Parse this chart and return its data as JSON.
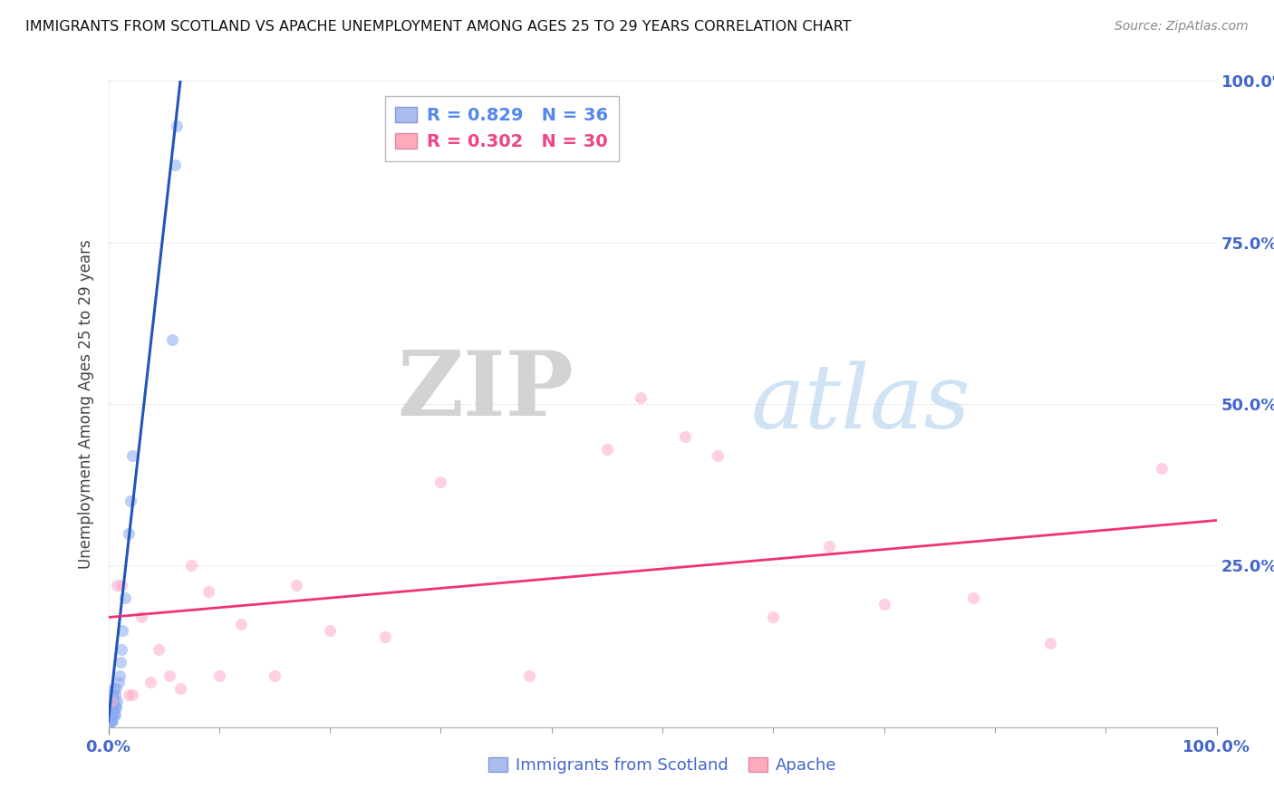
{
  "title": "IMMIGRANTS FROM SCOTLAND VS APACHE UNEMPLOYMENT AMONG AGES 25 TO 29 YEARS CORRELATION CHART",
  "source": "Source: ZipAtlas.com",
  "ylabel": "Unemployment Among Ages 25 to 29 years",
  "legend_bottom": [
    "Immigrants from Scotland",
    "Apache"
  ],
  "legend_top": [
    {
      "label": "R = 0.829   N = 36",
      "color": "#5588ee"
    },
    {
      "label": "R = 0.302   N = 30",
      "color": "#ee4488"
    }
  ],
  "scatter_scotland": {
    "x": [
      0.001,
      0.001,
      0.002,
      0.002,
      0.002,
      0.003,
      0.003,
      0.003,
      0.003,
      0.004,
      0.004,
      0.004,
      0.004,
      0.004,
      0.005,
      0.005,
      0.005,
      0.005,
      0.006,
      0.006,
      0.006,
      0.007,
      0.007,
      0.008,
      0.009,
      0.01,
      0.011,
      0.012,
      0.013,
      0.015,
      0.018,
      0.02,
      0.022,
      0.058,
      0.06,
      0.062
    ],
    "y": [
      0.01,
      0.02,
      0.01,
      0.02,
      0.03,
      0.01,
      0.02,
      0.03,
      0.04,
      0.01,
      0.02,
      0.03,
      0.04,
      0.05,
      0.02,
      0.03,
      0.04,
      0.06,
      0.02,
      0.03,
      0.05,
      0.03,
      0.06,
      0.04,
      0.07,
      0.08,
      0.1,
      0.12,
      0.15,
      0.2,
      0.3,
      0.35,
      0.42,
      0.6,
      0.87,
      0.93
    ],
    "color": "#88aaee",
    "alpha": 0.55,
    "size": 90
  },
  "scatter_apache": {
    "x": [
      0.003,
      0.008,
      0.012,
      0.018,
      0.022,
      0.03,
      0.038,
      0.045,
      0.055,
      0.065,
      0.075,
      0.09,
      0.1,
      0.12,
      0.15,
      0.17,
      0.2,
      0.25,
      0.3,
      0.38,
      0.45,
      0.48,
      0.52,
      0.55,
      0.6,
      0.65,
      0.7,
      0.78,
      0.85,
      0.95
    ],
    "y": [
      0.04,
      0.22,
      0.22,
      0.05,
      0.05,
      0.17,
      0.07,
      0.12,
      0.08,
      0.06,
      0.25,
      0.21,
      0.08,
      0.16,
      0.08,
      0.22,
      0.15,
      0.14,
      0.38,
      0.08,
      0.43,
      0.51,
      0.45,
      0.42,
      0.17,
      0.28,
      0.19,
      0.2,
      0.13,
      0.4
    ],
    "color": "#ffaacc",
    "alpha": 0.55,
    "size": 90
  },
  "trendline_scotland": {
    "x": [
      0.0,
      0.065
    ],
    "y": [
      0.01,
      1.0
    ],
    "color": "#2255bb",
    "linewidth": 2.2,
    "linestyle": "-"
  },
  "trendline_apache": {
    "x": [
      0.0,
      1.0
    ],
    "y": [
      0.17,
      0.32
    ],
    "color": "#ee3377",
    "linewidth": 2.0,
    "linestyle": "-"
  },
  "xlim": [
    0.0,
    1.0
  ],
  "ylim": [
    0.0,
    1.0
  ],
  "background_color": "#ffffff",
  "grid_color": "#cccccc",
  "watermark_zip": "ZIP",
  "watermark_atlas": "atlas",
  "figsize": [
    14.06,
    8.92
  ],
  "dpi": 100
}
